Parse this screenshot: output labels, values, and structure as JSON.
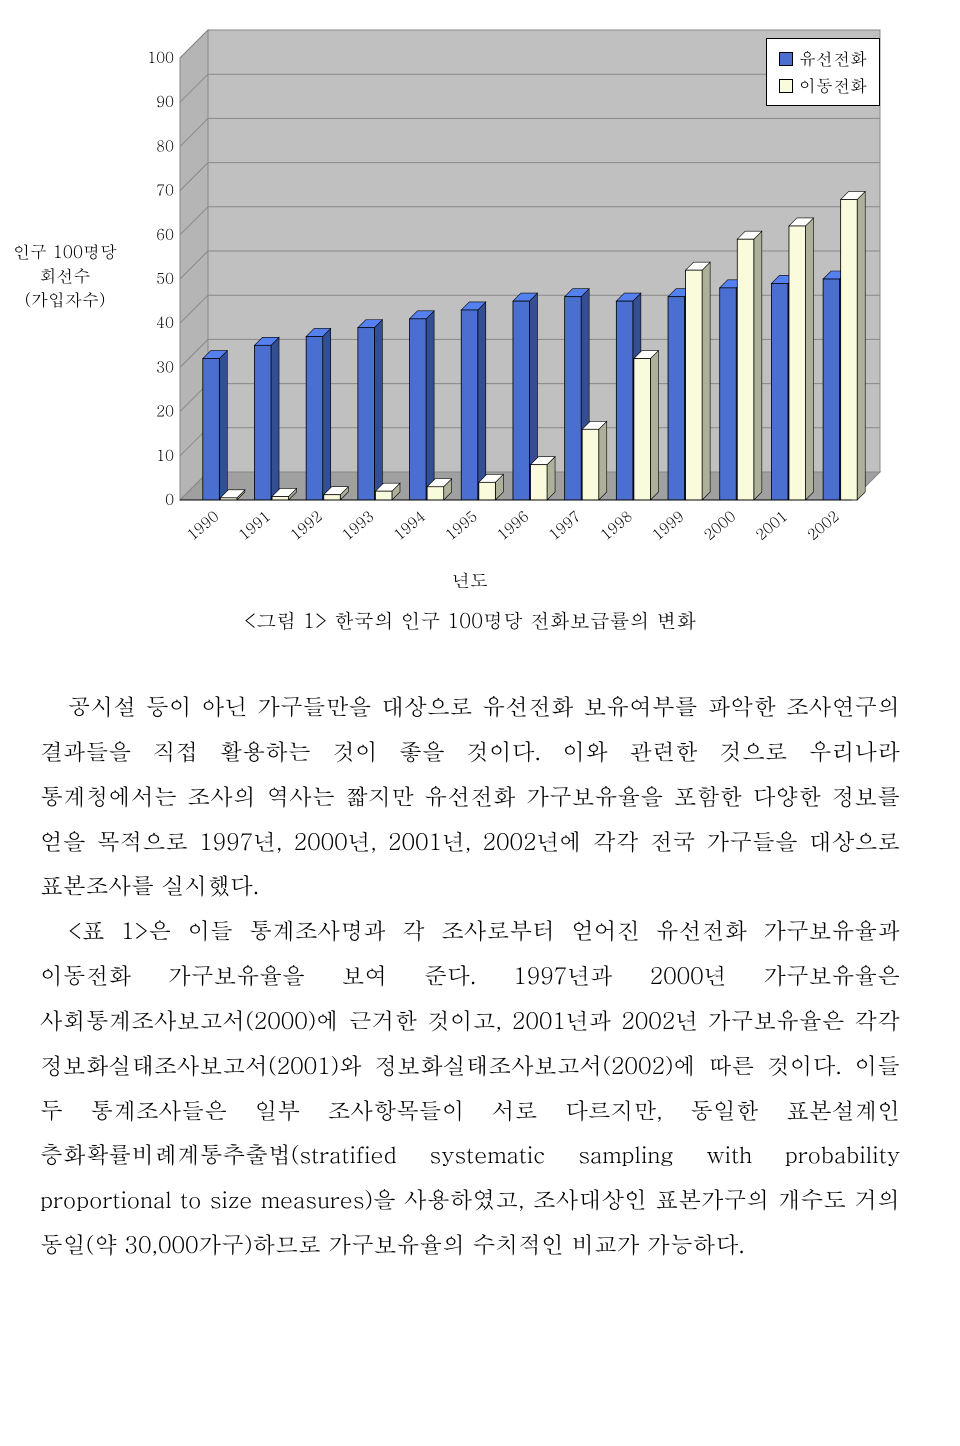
{
  "chart": {
    "type": "bar",
    "categories": [
      "1990",
      "1991",
      "1992",
      "1993",
      "1994",
      "1995",
      "1996",
      "1997",
      "1998",
      "1999",
      "2000",
      "2001",
      "2002"
    ],
    "series": [
      {
        "name": "유선전화",
        "fill": "#4a6fd1",
        "stroke": "#000000",
        "values": [
          32,
          35,
          37,
          39,
          41,
          43,
          45,
          46,
          45,
          46,
          48,
          49,
          50
        ]
      },
      {
        "name": "이동전화",
        "fill": "#fafbdc",
        "stroke": "#000000",
        "values": [
          0.5,
          0.8,
          1.2,
          2,
          3,
          4,
          8,
          16,
          32,
          52,
          59,
          62,
          68
        ]
      }
    ],
    "ylim": [
      0,
      100
    ],
    "ytick_step": 10,
    "background_plot": "#c0c0c0",
    "grid_color": "#888888",
    "floor_color": "#a0a0a0",
    "yaxis_label_lines": [
      "인구 100명당",
      "회선수",
      "(가입자수)"
    ],
    "xaxis_title": "년도",
    "legend_labels": [
      "유선전화",
      "이동전화"
    ]
  },
  "caption": "<그림 1> 한국의 인구 100명당 전화보급률의 변화",
  "body": {
    "p1": "공시설 등이 아닌 가구들만을 대상으로 유선전화 보유여부를 파악한 조사연구의 결과들을 직접 활용하는 것이 좋을 것이다. 이와 관련한 것으로 우리나라 통계청에서는 조사의 역사는 짧지만 유선전화 가구보유율을 포함한 다양한 정보를 얻을 목적으로 1997년, 2000년, 2001년, 2002년에 각각 전국 가구들을 대상으로 표본조사를 실시했다.",
    "p2": "<표 1>은 이들 통계조사명과 각 조사로부터 얻어진 유선전화 가구보유율과 이동전화 가구보유율을 보여 준다. 1997년과 2000년 가구보유율은 사회통계조사보고서(2000)에 근거한 것이고, 2001년과 2002년 가구보유율은 각각 정보화실태조사보고서(2001)와 정보화실태조사보고서(2002)에 따른 것이다. 이들 두 통계조사들은 일부 조사항목들이 서로 다르지만, 동일한 표본설계인 층화확률비례계통추출법(stratified systematic sampling with probability proportional to size measures)을 사용하였고, 조사대상인 표본가구의 개수도 거의 동일(약 30,000가구)하므로 가구보유율의 수치적인 비교가 가능하다."
  }
}
